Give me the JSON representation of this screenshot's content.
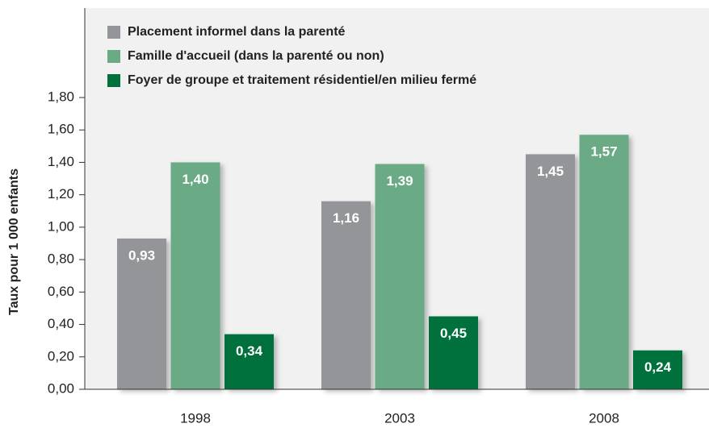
{
  "chart_data": {
    "type": "bar",
    "y_label": "Taux pour 1 000 enfants",
    "categories": [
      "1998",
      "2003",
      "2008"
    ],
    "series": [
      {
        "name": "Placement informel dans la parenté",
        "color": "#939598",
        "values": [
          0.93,
          1.16,
          1.45
        ],
        "value_labels": [
          "0,93",
          "1,16",
          "1,45"
        ]
      },
      {
        "name": "Famille d'accueil (dans la parenté ou non)",
        "color": "#6aaa85",
        "values": [
          1.4,
          1.39,
          1.57
        ],
        "value_labels": [
          "1,40",
          "1,39",
          "1,57"
        ]
      },
      {
        "name": "Foyer de groupe et traitement résidentiel/en milieu fermé",
        "color": "#00703c",
        "values": [
          0.34,
          0.45,
          0.24
        ],
        "value_labels": [
          "0,34",
          "0,45",
          "0,24"
        ]
      }
    ],
    "ylim": [
      0,
      1.8
    ],
    "yticks": [
      {
        "value": 0,
        "label": "0,00"
      },
      {
        "value": 0.2,
        "label": "0,20"
      },
      {
        "value": 0.4,
        "label": "0,40"
      },
      {
        "value": 0.6,
        "label": "0,60"
      },
      {
        "value": 0.8,
        "label": "0,80"
      },
      {
        "value": 1.0,
        "label": "1,00"
      },
      {
        "value": 1.2,
        "label": "1,20"
      },
      {
        "value": 1.4,
        "label": "1,40"
      },
      {
        "value": 1.6,
        "label": "1,60"
      },
      {
        "value": 1.8,
        "label": "1,80"
      }
    ],
    "legend": "top-left"
  }
}
